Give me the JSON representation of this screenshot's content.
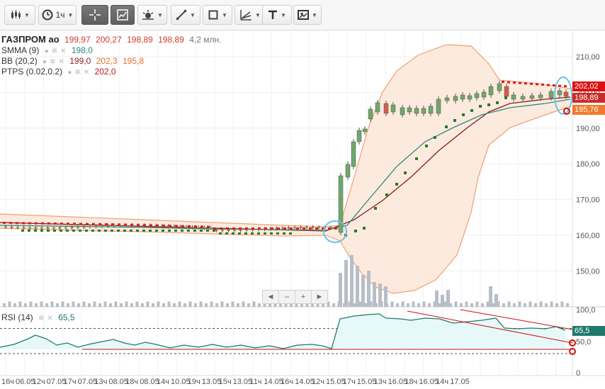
{
  "toolbar": {
    "timeframe_label": "1ч",
    "buttons": [
      {
        "name": "chart-type-button",
        "icon": "candlestick-icon"
      },
      {
        "name": "timeframe-button",
        "icon": "clock-icon"
      },
      {
        "name": "crosshair-button",
        "icon": "crosshair-icon"
      },
      {
        "name": "chart-view-button",
        "icon": "chart-view-icon"
      },
      {
        "name": "indicators-button",
        "icon": "indicators-icon"
      },
      {
        "name": "draw-line-button",
        "icon": "line-tool-icon"
      },
      {
        "name": "shapes-button",
        "icon": "shape-tool-icon"
      },
      {
        "name": "analysis-button",
        "icon": "trend-tool-icon"
      },
      {
        "name": "text-button",
        "icon": "text-tool-icon"
      },
      {
        "name": "image-button",
        "icon": "image-icon"
      }
    ]
  },
  "legend": {
    "title": "ГАЗПРОМ ао",
    "open": "199,97",
    "high": "200,27",
    "low": "198,89",
    "close": "198,89",
    "volume": "4,2 млн.",
    "smma_name": "SMMA (9)",
    "smma_value": "198,0",
    "bb_name": "BB (20,2)",
    "bb_mid": "199,0",
    "bb_up": "202,3",
    "bb_low": "195,8",
    "ptps_name": "PTPS (0.02,0.2)",
    "ptps_value": "202,0",
    "rsi_name": "RSI (14)",
    "rsi_value": "65,5"
  },
  "price_axis": {
    "ticks": [
      "210,00",
      "200,00",
      "190,00",
      "180,00",
      "170,00",
      "160,00",
      "150,00"
    ],
    "tag_ptps": "202,02",
    "tag_close": "198,89",
    "tag_bb_low": "195,76",
    "ptps_color": "#e01010",
    "close_color": "#cc2a2a",
    "bb_color": "#f07b2a"
  },
  "rsi_axis": {
    "ticks": [
      "100,0",
      "50,0",
      "0"
    ],
    "tag_value": "65,5",
    "tag_color": "#1f7a6d"
  },
  "time_axis": [
    "16ч",
    "06.05",
    "12ч",
    "07.05",
    "17ч",
    "07.05",
    "13ч",
    "08.05",
    "18ч",
    "08.05",
    "14ч",
    "10.05",
    "19ч",
    "13.05",
    "15ч",
    "13.05",
    "11ч",
    "14.05",
    "16ч",
    "14.05",
    "12ч",
    "15.05",
    "17ч",
    "15.05",
    "13ч",
    "16.05",
    "18ч",
    "16.05",
    "14ч",
    "17.05"
  ],
  "navigator": {
    "prev": "◄",
    "minus": "–",
    "plus": "+",
    "next": "►"
  },
  "colors": {
    "bull": "#6fa86a",
    "bear": "#d0604a",
    "smma": "#2e8b7e",
    "bb_mid": "#8b1a1a",
    "bb_band": "#f0a070",
    "bb_fill": "#fdeadf",
    "ptps_up": "#2a7a2a",
    "ptps_down": "#d42020",
    "rsi": "#1f7a6d",
    "rsi_fill": "#e7f8f8",
    "volume": "#b8bec8",
    "annotation": "#cc1111",
    "highlight": "#6cc3e0"
  }
}
